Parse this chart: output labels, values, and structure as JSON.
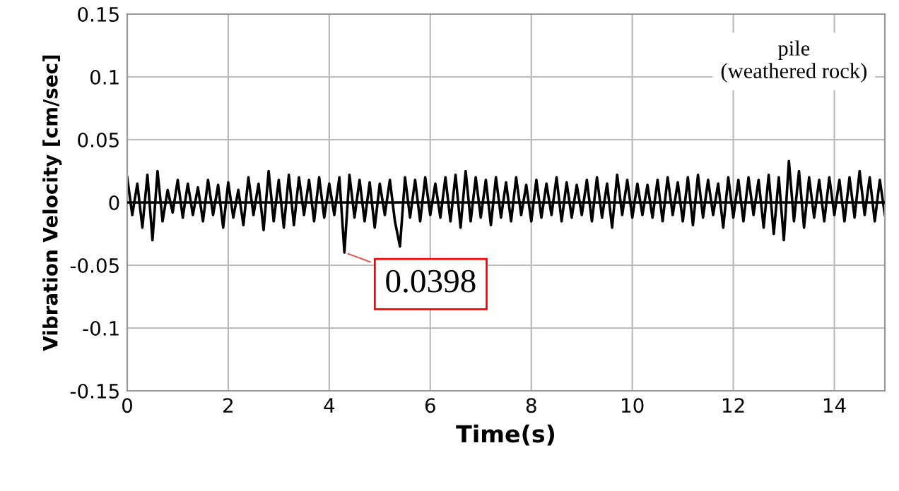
{
  "chart_data": {
    "type": "line",
    "xlabel": "Time(s)",
    "ylabel": "Vibration Velocity [cm/sec]",
    "x": [
      0,
      0.1,
      0.2,
      0.3,
      0.4,
      0.5,
      0.6,
      0.7,
      0.8,
      0.9,
      1,
      1.1,
      1.2,
      1.3,
      1.4,
      1.5,
      1.6,
      1.7,
      1.8,
      1.9,
      2,
      2.1,
      2.2,
      2.3,
      2.4,
      2.5,
      2.6,
      2.7,
      2.8,
      2.9,
      3,
      3.1,
      3.2,
      3.3,
      3.4,
      3.5,
      3.6,
      3.7,
      3.8,
      3.9,
      4,
      4.1,
      4.2,
      4.3,
      4.4,
      4.5,
      4.6,
      4.7,
      4.8,
      4.9,
      5,
      5.1,
      5.2,
      5.3,
      5.4,
      5.5,
      5.6,
      5.7,
      5.8,
      5.9,
      6,
      6.1,
      6.2,
      6.3,
      6.4,
      6.5,
      6.6,
      6.7,
      6.8,
      6.9,
      7,
      7.1,
      7.2,
      7.3,
      7.4,
      7.5,
      7.6,
      7.7,
      7.8,
      7.9,
      8,
      8.1,
      8.2,
      8.3,
      8.4,
      8.5,
      8.6,
      8.7,
      8.8,
      8.9,
      9,
      9.1,
      9.2,
      9.3,
      9.4,
      9.5,
      9.6,
      9.7,
      9.8,
      9.9,
      10,
      10.1,
      10.2,
      10.3,
      10.4,
      10.5,
      10.6,
      10.7,
      10.8,
      10.9,
      11,
      11.1,
      11.2,
      11.3,
      11.4,
      11.5,
      11.6,
      11.7,
      11.8,
      11.9,
      12,
      12.1,
      12.2,
      12.3,
      12.4,
      12.5,
      12.6,
      12.7,
      12.8,
      12.9,
      13,
      13.1,
      13.2,
      13.3,
      13.4,
      13.5,
      13.6,
      13.7,
      13.8,
      13.9,
      14,
      14.1,
      14.2,
      14.3,
      14.4,
      14.5,
      14.6,
      14.7,
      14.8,
      14.9,
      15
    ],
    "series": [
      {
        "color": "#000000",
        "values": [
          0.02,
          -0.01,
          0.015,
          -0.02,
          0.022,
          -0.03,
          0.025,
          -0.015,
          0.01,
          -0.008,
          0.018,
          -0.012,
          0.015,
          -0.01,
          0.012,
          -0.015,
          0.018,
          -0.01,
          0.014,
          -0.02,
          0.016,
          -0.012,
          0.01,
          -0.018,
          0.02,
          -0.01,
          0.015,
          -0.022,
          0.025,
          -0.015,
          0.018,
          -0.02,
          0.022,
          -0.018,
          0.02,
          -0.01,
          0.018,
          -0.015,
          0.02,
          -0.012,
          0.015,
          -0.01,
          0.02,
          -0.0398,
          0.022,
          -0.012,
          0.018,
          -0.015,
          0.016,
          -0.02,
          0.015,
          -0.01,
          0.018,
          -0.015,
          -0.035,
          0.02,
          -0.012,
          0.018,
          -0.015,
          0.02,
          -0.01,
          0.015,
          -0.012,
          0.02,
          -0.015,
          0.022,
          -0.02,
          0.025,
          -0.015,
          0.02,
          -0.012,
          0.018,
          -0.018,
          0.02,
          -0.012,
          0.016,
          -0.015,
          0.02,
          -0.01,
          0.014,
          -0.015,
          0.018,
          -0.012,
          0.015,
          -0.01,
          0.02,
          -0.015,
          0.016,
          -0.012,
          0.014,
          -0.01,
          0.018,
          -0.015,
          0.02,
          -0.012,
          0.015,
          -0.02,
          0.022,
          -0.01,
          0.018,
          -0.012,
          0.015,
          -0.01,
          0.014,
          -0.012,
          0.018,
          -0.015,
          0.02,
          -0.01,
          0.016,
          -0.015,
          0.02,
          -0.018,
          0.022,
          -0.012,
          0.018,
          -0.01,
          0.015,
          -0.02,
          0.02,
          -0.012,
          0.018,
          -0.015,
          0.02,
          -0.01,
          0.018,
          -0.02,
          0.022,
          -0.025,
          0.02,
          -0.03,
          0.033,
          -0.015,
          0.025,
          -0.02,
          0.02,
          -0.012,
          0.018,
          -0.015,
          0.02,
          -0.01,
          0.018,
          -0.015,
          0.02,
          -0.012,
          0.025,
          -0.01,
          0.02,
          -0.015,
          0.018,
          -0.01
        ]
      }
    ],
    "xlim": [
      0,
      15
    ],
    "ylim": [
      -0.15,
      0.15
    ],
    "xticks": [
      0,
      2,
      4,
      6,
      8,
      10,
      12,
      14
    ],
    "yticks": [
      -0.15,
      -0.1,
      -0.05,
      0,
      0.05,
      0.1,
      0.15
    ],
    "grid": true,
    "marker": "none",
    "line_style": "solid",
    "ref_lines": [
      {
        "axis": "y",
        "value": 0,
        "color": "#000000"
      }
    ],
    "annotations": [
      {
        "text": "0.0398",
        "x": 4.3,
        "y": -0.0398
      },
      "pile\n(weathered rock)"
    ]
  }
}
